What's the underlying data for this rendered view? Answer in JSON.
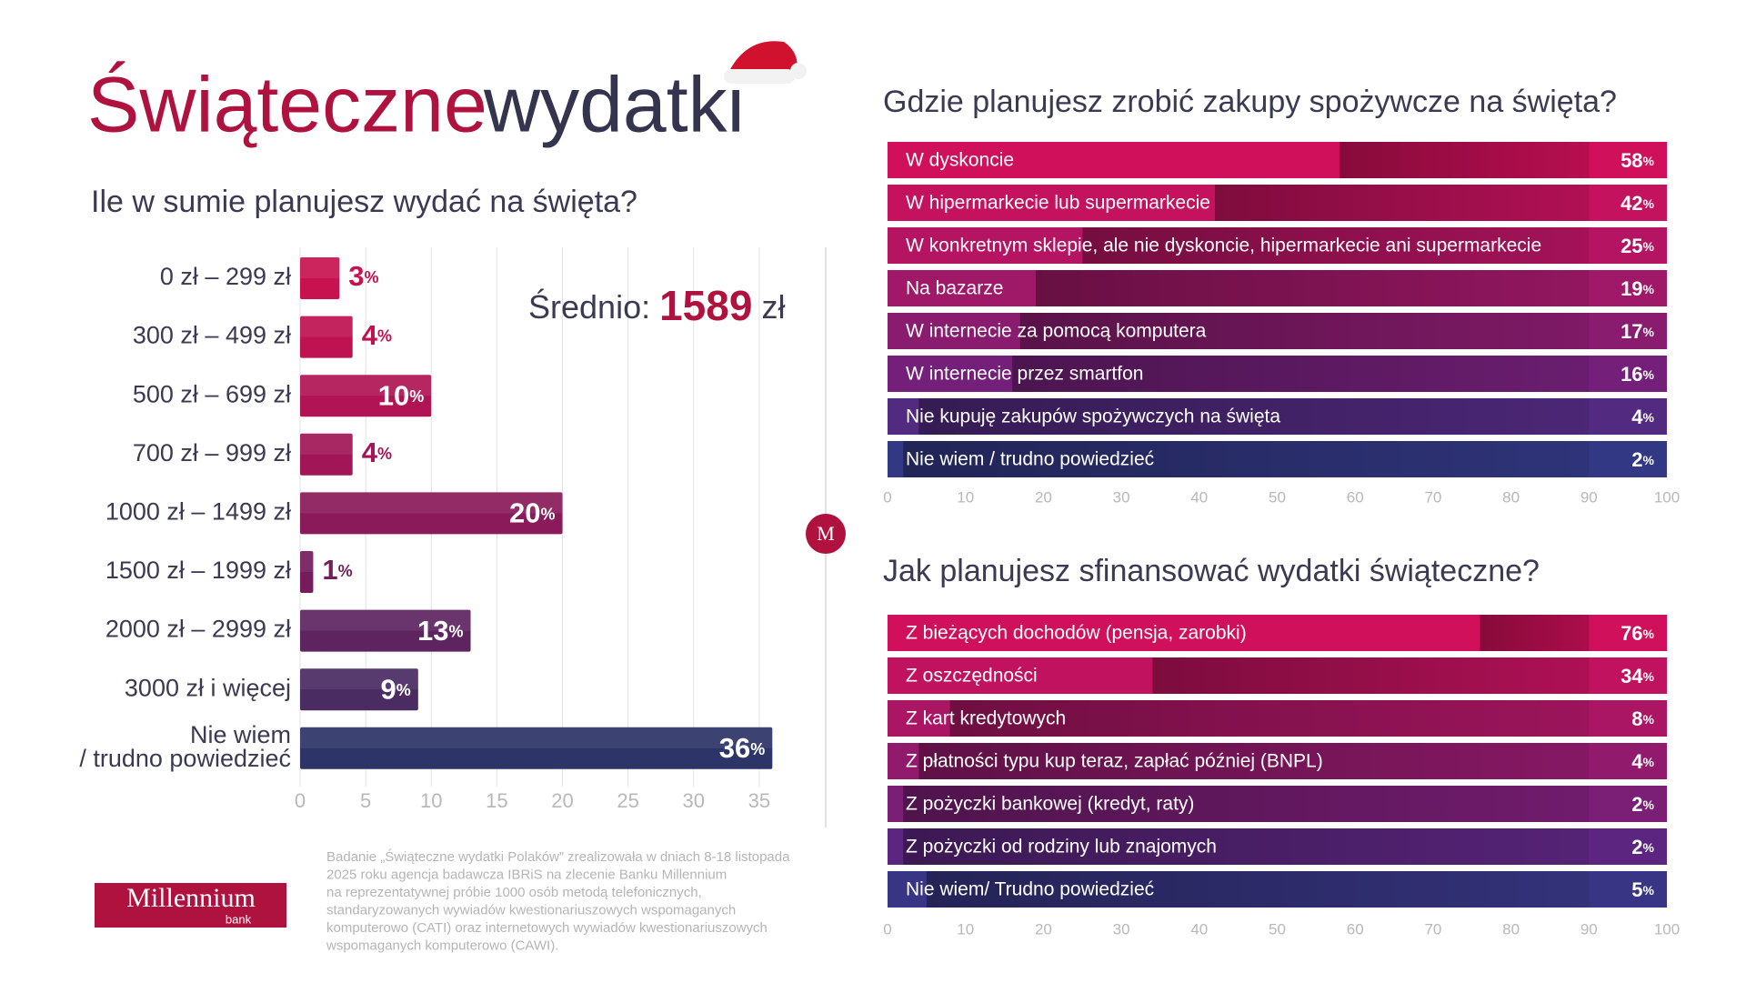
{
  "header": {
    "title_1": "Świąteczne",
    "title_2": "wydatki"
  },
  "logo": {
    "name": "Millennium",
    "sub": "bank",
    "mark": "M"
  },
  "footnote": [
    "Badanie „Świąteczne wydatki Polaków” zrealizowała w dniach 8-18 listopada",
    "2025 roku agencja badawcza IBRiS na zlecenie Banku Millennium",
    "na reprezentatywnej próbie 1000 osób metodą telefonicznych,",
    "standaryzowanych wywiadów kwestionariuszowych wspomaganych",
    "komputerowo (CATI) oraz internetowych wywiadów kwestionariuszowych",
    "wspomaganych komputerowo (CAWI)."
  ],
  "chart_data": [
    {
      "type": "bar",
      "title": "Ile w sumie planujesz wydać na święta?",
      "categories": [
        "0 zł – 299 zł",
        "300 zł – 499 zł",
        "500 zł – 699 zł",
        "700 zł – 999 zł",
        "1000 zł – 1499 zł",
        "1500 zł – 1999 zł",
        "2000 zł – 2999 zł",
        "3000 zł i więcej",
        "Nie wiem\n/ trudno powiedzieć"
      ],
      "values": [
        3,
        4,
        10,
        4,
        20,
        1,
        13,
        9,
        36
      ],
      "value_labels": [
        "3%",
        "4%",
        "10%",
        "4%",
        "20%",
        "1%",
        "13%",
        "9%",
        "36%"
      ],
      "colors": [
        "#c8124f",
        "#bf1250",
        "#b01454",
        "#a01656",
        "#8a1a5a",
        "#741c5c",
        "#5e2460",
        "#4a2b62",
        "#2c3468"
      ],
      "xlim": [
        0,
        40
      ],
      "xticks": [
        0,
        5,
        10,
        15,
        20,
        25,
        30,
        35
      ],
      "grid": true,
      "annotation": {
        "label": "Średnio:",
        "value": 1589,
        "unit": "zł"
      }
    },
    {
      "type": "bar",
      "title": "Gdzie planujesz zrobić zakupy spożywcze na święta?",
      "categories": [
        "W dyskoncie",
        "W hipermarkecie lub supermarkecie",
        "W konkretnym sklepie, ale nie dyskoncie, hipermarkecie ani supermarkecie",
        "Na bazarze",
        "W internecie za pomocą komputera",
        "W internecie przez smartfon",
        "Nie kupuję zakupów spożywczych na święta",
        "Nie wiem / trudno powiedzieć"
      ],
      "values": [
        58,
        42,
        25,
        19,
        17,
        16,
        4,
        2
      ],
      "value_labels": [
        "58%",
        "42%",
        "25%",
        "19%",
        "17%",
        "16%",
        "4%",
        "2%"
      ],
      "colors": [
        "#d0105a",
        "#c4125e",
        "#b41462",
        "#a01868",
        "#8a1c70",
        "#74207a",
        "#522a80",
        "#333884"
      ],
      "xlim": [
        0,
        100
      ],
      "xticks": [
        0,
        10,
        20,
        30,
        40,
        50,
        60,
        70,
        80,
        90,
        100
      ],
      "grid": false
    },
    {
      "type": "bar",
      "title": "Jak planujesz sfinansować wydatki świąteczne?",
      "categories": [
        "Z bieżących dochodów (pensja, zarobki)",
        "Z oszczędności",
        "Z kart kredytowych",
        "Z płatności typu kup teraz, zapłać później (BNPL)",
        "Z pożyczki bankowej (kredyt, raty)",
        "Z pożyczki od rodziny lub znajomych",
        "Nie wiem/ Trudno powiedzieć"
      ],
      "values": [
        76,
        34,
        8,
        4,
        2,
        2,
        5
      ],
      "value_labels": [
        "76%",
        "34%",
        "8%",
        "4%",
        "2%",
        "2%",
        "5%"
      ],
      "colors": [
        "#d0105a",
        "#c0125e",
        "#aa1664",
        "#921a6c",
        "#7a1e76",
        "#5c2680",
        "#383684"
      ],
      "xlim": [
        0,
        100
      ],
      "xticks": [
        0,
        10,
        20,
        30,
        40,
        50,
        60,
        70,
        80,
        90,
        100
      ],
      "grid": false
    }
  ]
}
